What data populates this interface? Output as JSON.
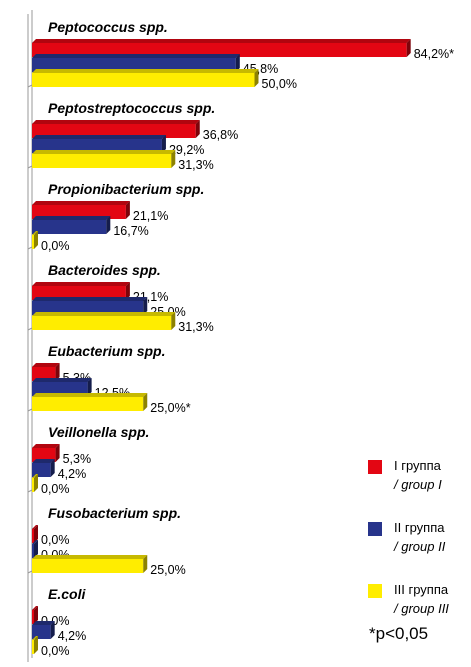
{
  "chart_data": {
    "type": "bar",
    "orientation": "horizontal",
    "categories": [
      "Peptococcus spp.",
      "Peptostreptococcus spp.",
      "Propionibacterium spp.",
      "Bacteroides spp.",
      "Eubacterium spp.",
      "Veillonella spp.",
      "Fusobacterium spp.",
      "E.coli"
    ],
    "series": [
      {
        "name": "I группа / group I",
        "color": "#e30613",
        "values": [
          84.2,
          36.8,
          21.1,
          21.1,
          5.3,
          5.3,
          0.0,
          0.0
        ],
        "labels": [
          "84,2%*",
          "36,8%",
          "21,1%",
          "21,1%",
          "5,3%",
          "5,3%",
          "0,0%",
          "0,0%"
        ]
      },
      {
        "name": "II группа / group II",
        "color": "#27348b",
        "values": [
          45.8,
          29.2,
          16.7,
          25.0,
          12.5,
          4.2,
          0.0,
          4.2
        ],
        "labels": [
          "45,8%",
          "29,2%",
          "16,7%",
          "25,0%",
          "12,5%",
          "4,2%",
          "0,0%",
          "4,2%"
        ]
      },
      {
        "name": "III группа / group III",
        "color": "#ffed00",
        "values": [
          50.0,
          31.3,
          0.0,
          31.3,
          25.0,
          0.0,
          25.0,
          0.0
        ],
        "labels": [
          "50,0%",
          "31,3%",
          "0,0%",
          "31,3%",
          "25,0%*",
          "0,0%",
          "25,0%",
          "0,0%"
        ]
      }
    ],
    "grid": false,
    "legend_position": "bottom-right"
  },
  "legend": [
    {
      "label": "I группа",
      "sublabel": "/ group I",
      "color": "#e30613"
    },
    {
      "label": "II группа",
      "sublabel": "/ group II",
      "color": "#27348b"
    },
    {
      "label": "III группа",
      "sublabel": "/ group III",
      "color": "#ffed00"
    }
  ],
  "footnote": "*p<0,05"
}
